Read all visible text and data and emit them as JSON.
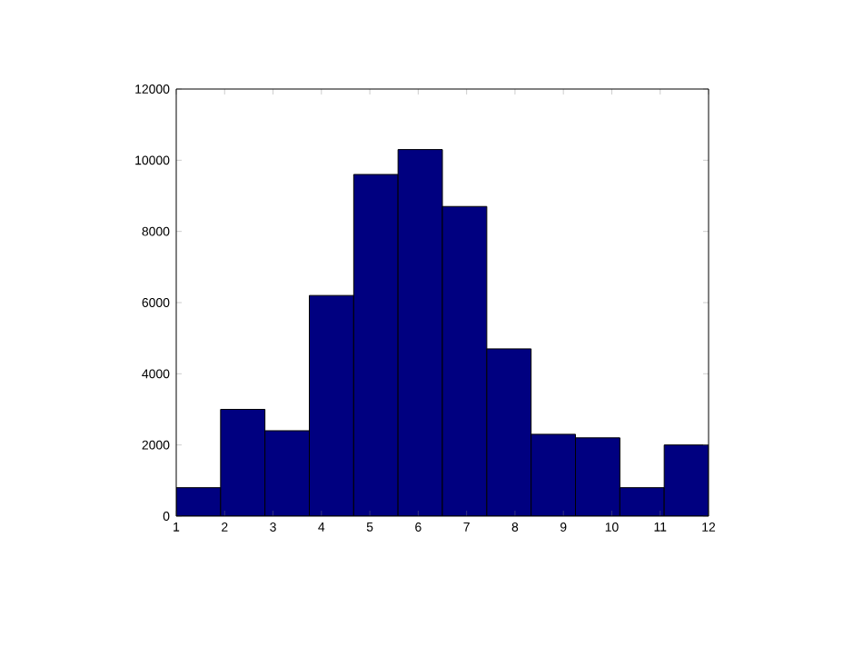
{
  "chart_data": {
    "type": "histogram",
    "bins": [
      1,
      1.917,
      2.833,
      3.75,
      4.667,
      5.583,
      6.5,
      7.417,
      8.333,
      9.25,
      10.167,
      11.083,
      12
    ],
    "values": [
      800,
      3000,
      2400,
      6200,
      9600,
      10300,
      8700,
      4700,
      2300,
      2200,
      800,
      2000
    ],
    "color": "#000080",
    "xlim": [
      1,
      12
    ],
    "ylim": [
      0,
      12000
    ],
    "xticks": [
      1,
      2,
      3,
      4,
      5,
      6,
      7,
      8,
      9,
      10,
      11,
      12
    ],
    "yticks": [
      0,
      2000,
      4000,
      6000,
      8000,
      10000,
      12000
    ]
  }
}
